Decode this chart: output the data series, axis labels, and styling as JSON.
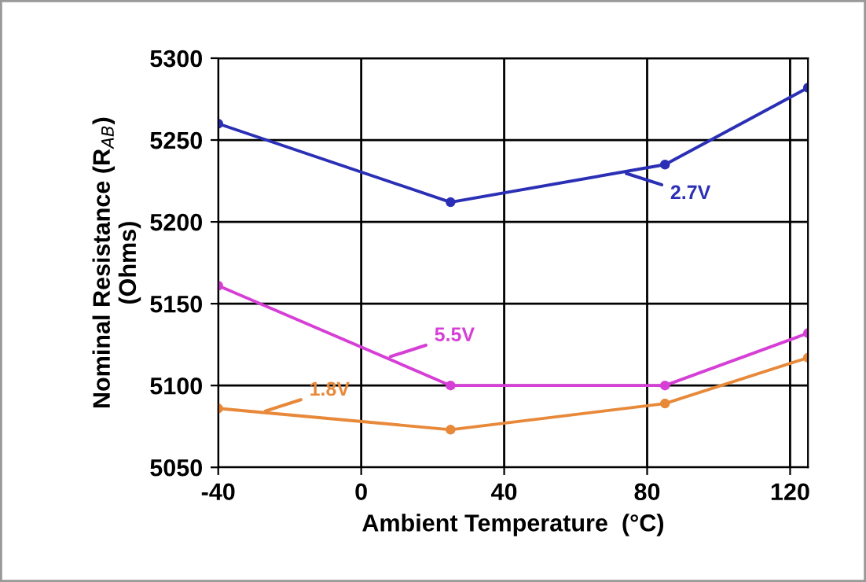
{
  "chart_data": {
    "type": "line",
    "xlabel": "Ambient Temperature  (°C)",
    "ylabel": "Nominal Resistance (R$_{AB}$)\n(Ohms)",
    "x": [
      -40,
      25,
      85,
      125
    ],
    "series": [
      {
        "name": "2.7V",
        "color": "#2a2fb5",
        "values": [
          5260,
          5212,
          5235,
          5282
        ]
      },
      {
        "name": "5.5V",
        "color": "#d63fd6",
        "values": [
          5161,
          5100,
          5100,
          5132
        ]
      },
      {
        "name": "1.8V",
        "color": "#e8893a",
        "values": [
          5086,
          5073,
          5089,
          5117
        ]
      }
    ],
    "xlim": [
      -40,
      125
    ],
    "xticks": [
      -40,
      0,
      40,
      80,
      120
    ],
    "ylim": [
      5050,
      5300
    ],
    "yticks": [
      5050,
      5100,
      5150,
      5200,
      5250,
      5300
    ],
    "grid": true,
    "marker": "circle",
    "line_style": "solid"
  }
}
